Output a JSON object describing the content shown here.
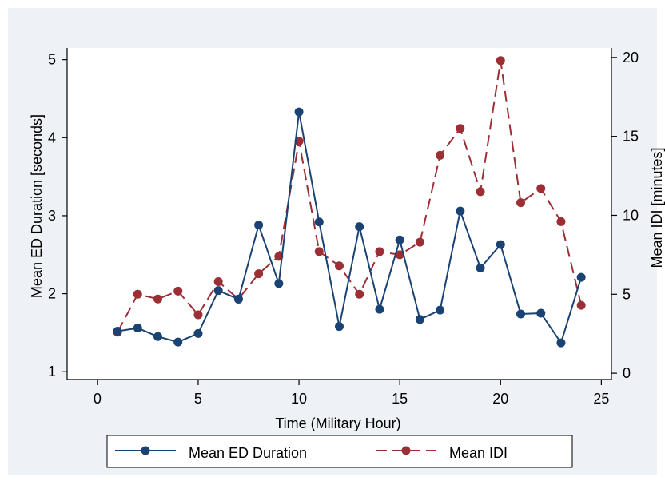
{
  "chart_data": {
    "type": "line",
    "xlabel": "Time (Military Hour)",
    "ylabel_left": "Mean ED Duration [seconds]",
    "ylabel_right": "Mean IDI [minutes]",
    "xlim": [
      -1.5,
      25.5
    ],
    "ylim_left": [
      0.9,
      5.15
    ],
    "ylim_right": [
      -0.4,
      20.6
    ],
    "x_ticks": [
      0,
      5,
      10,
      15,
      20,
      25
    ],
    "y_left_ticks": [
      1,
      2,
      3,
      4,
      5
    ],
    "y_right_ticks": [
      0,
      5,
      10,
      15,
      20
    ],
    "grid": false,
    "legend_position": "bottom",
    "x": [
      1,
      2,
      3,
      4,
      5,
      6,
      7,
      8,
      9,
      10,
      11,
      12,
      13,
      14,
      15,
      16,
      17,
      18,
      19,
      20,
      21,
      22,
      23,
      24
    ],
    "series": [
      {
        "name": "Mean ED Duration",
        "axis": "left",
        "color": "#1a4272",
        "line_style": "solid",
        "values": [
          1.52,
          1.56,
          1.45,
          1.38,
          1.49,
          2.04,
          1.93,
          2.88,
          2.13,
          4.33,
          2.92,
          1.58,
          2.86,
          1.8,
          2.69,
          1.67,
          1.79,
          3.06,
          2.33,
          2.63,
          1.74,
          1.75,
          1.37,
          2.21
        ]
      },
      {
        "name": "Mean IDI",
        "axis": "right",
        "color": "#9c2f35",
        "line_style": "dashed",
        "values": [
          2.6,
          5.0,
          4.7,
          5.2,
          3.7,
          5.8,
          4.7,
          6.3,
          7.4,
          14.7,
          7.7,
          6.8,
          5.0,
          7.7,
          7.5,
          8.3,
          13.8,
          15.5,
          11.5,
          19.8,
          10.8,
          11.7,
          9.6,
          4.3
        ]
      }
    ]
  }
}
